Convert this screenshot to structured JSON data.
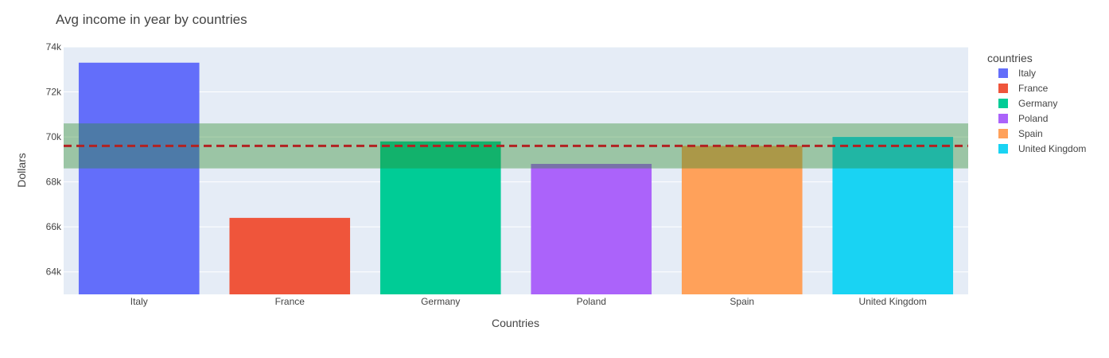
{
  "chart_data": {
    "type": "bar",
    "title": "Avg income in year by countries",
    "xlabel": "Countries",
    "ylabel": "Dollars",
    "categories": [
      "Italy",
      "France",
      "Germany",
      "Poland",
      "Spain",
      "United Kingdom"
    ],
    "values": [
      73300,
      66400,
      69800,
      68800,
      69600,
      70000
    ],
    "colors": [
      "#636efa",
      "#ef553b",
      "#00cc96",
      "#ab63fa",
      "#ffa15a",
      "#19d3f3"
    ],
    "ylim": [
      63000,
      74000
    ],
    "yticks": [
      64000,
      66000,
      68000,
      70000,
      72000,
      74000
    ],
    "ytick_labels": [
      "64k",
      "66k",
      "68k",
      "70k",
      "72k",
      "74k"
    ],
    "reference_line": {
      "value": 69600,
      "style": "dashed",
      "color": "#b22222"
    },
    "reference_band": {
      "low": 68600,
      "high": 70600,
      "color": "#2e8b2e"
    },
    "legend": {
      "title": "countries",
      "position": "right"
    },
    "grid": true
  }
}
